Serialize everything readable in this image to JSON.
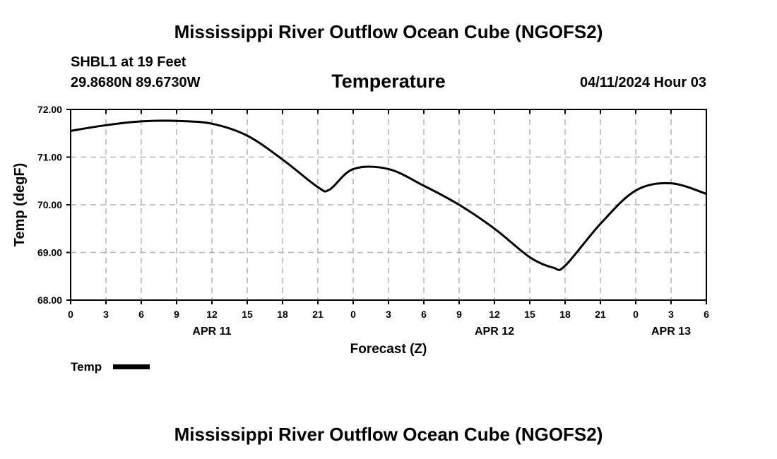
{
  "header": {
    "title_top": "Mississippi River Outflow Ocean Cube (NGOFS2)",
    "station": "SHBL1 at 19 Feet",
    "coords": "29.8680N  89.6730W",
    "datetime": "04/11/2024 Hour 03",
    "title_bottom": "Mississippi River Outflow Ocean Cube (NGOFS2)"
  },
  "chart_data": {
    "type": "line",
    "title": "Temperature",
    "xlabel": "Forecast (Z)",
    "ylabel": "Temp (degF)",
    "xlim": [
      0,
      54
    ],
    "ylim": [
      68,
      72
    ],
    "y_ticks": [
      "68.00",
      "69.00",
      "70.00",
      "71.00",
      "72.00"
    ],
    "y_tick_values": [
      68,
      69,
      70,
      71,
      72
    ],
    "x_tick_values": [
      0,
      3,
      6,
      9,
      12,
      15,
      18,
      21,
      24,
      27,
      30,
      33,
      36,
      39,
      42,
      45,
      48,
      51,
      54
    ],
    "x_tick_labels": [
      "0",
      "3",
      "6",
      "9",
      "12",
      "15",
      "18",
      "21",
      "0",
      "3",
      "6",
      "9",
      "12",
      "15",
      "18",
      "21",
      "0",
      "3",
      "6"
    ],
    "date_labels": [
      {
        "label": "APR 11",
        "x": 12
      },
      {
        "label": "APR 12",
        "x": 36
      },
      {
        "label": "APR 13",
        "x": 51
      }
    ],
    "grid": true,
    "series": [
      {
        "name": "Temp",
        "x": [
          0,
          3,
          6,
          9,
          12,
          15,
          18,
          21,
          22,
          24,
          27,
          30,
          33,
          36,
          39,
          41,
          42,
          45,
          48,
          51,
          54
        ],
        "values": [
          71.55,
          71.67,
          71.75,
          71.76,
          71.7,
          71.45,
          70.95,
          70.37,
          70.32,
          70.75,
          70.75,
          70.4,
          70.0,
          69.5,
          68.9,
          68.68,
          68.72,
          69.6,
          70.3,
          70.45,
          70.23
        ]
      }
    ],
    "legend": {
      "label": "Temp",
      "placement": "bottom-left"
    }
  }
}
